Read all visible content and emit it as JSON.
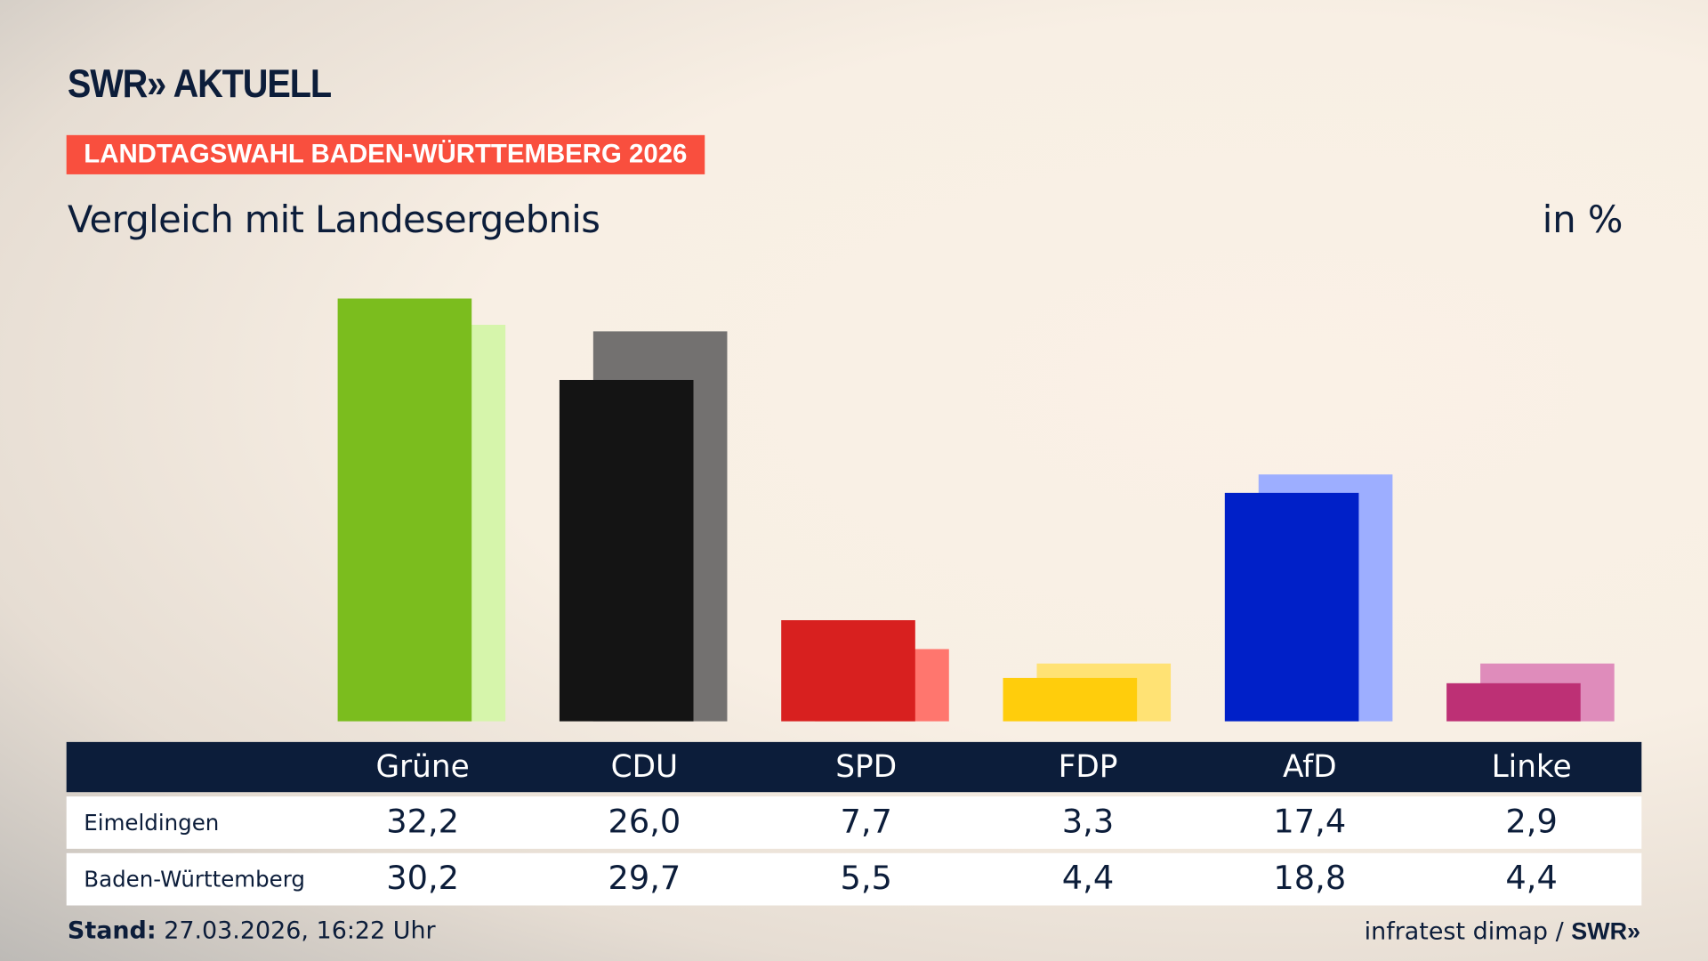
{
  "brand": {
    "logo": "SWR» AKTUELL",
    "source_logo": "SWR»"
  },
  "kicker": "LANDTAGSWAHL BADEN-WÜRTTEMBERG 2026",
  "subtitle": "Vergleich mit Landesergebnis",
  "unit": "in %",
  "footer": {
    "stand_label": "Stand:",
    "stand_value": "27.03.2026, 16:22 Uhr",
    "source": "infratest dimap /"
  },
  "chart_data": {
    "type": "bar",
    "categories": [
      "Grüne",
      "CDU",
      "SPD",
      "FDP",
      "AfD",
      "Linke"
    ],
    "series": [
      {
        "name": "Eimeldingen",
        "values": [
          32.2,
          26.0,
          7.7,
          3.3,
          17.4,
          2.9
        ],
        "labels": [
          "32,2",
          "26,0",
          "7,7",
          "3,3",
          "17,4",
          "2,9"
        ]
      },
      {
        "name": "Baden-Württemberg",
        "values": [
          30.2,
          29.7,
          5.5,
          4.4,
          18.8,
          4.4
        ],
        "labels": [
          "30,2",
          "29,7",
          "5,5",
          "4,4",
          "18,8",
          "4,4"
        ]
      }
    ],
    "colors": {
      "primary": [
        "#7bbd1e",
        "#141414",
        "#d8201f",
        "#ffcd0c",
        "#0020c8",
        "#bd3075"
      ],
      "secondary": [
        "#d6f5ab",
        "#737170",
        "#ff766e",
        "#ffe274",
        "#9daeff",
        "#df8cbb"
      ]
    },
    "ylim": [
      0,
      33
    ],
    "grid": false
  }
}
